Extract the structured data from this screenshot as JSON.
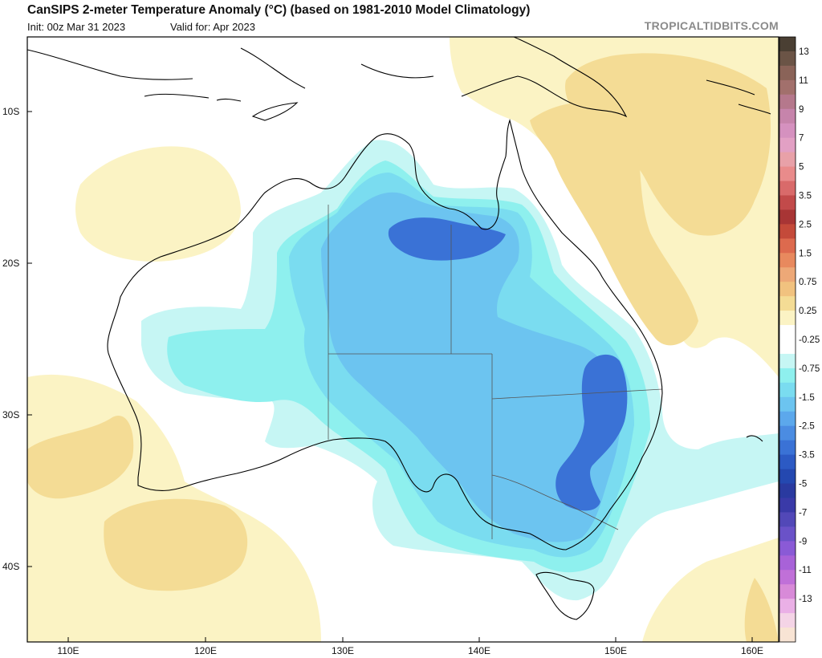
{
  "header": {
    "title": "CanSIPS 2-meter Temperature Anomaly (°C) (based on 1981-2010 Model Climatology)",
    "init": "Init: 00z Mar 31 2023",
    "valid": "Valid for: Apr 2023",
    "credit": "TROPICALTIDBITS.COM"
  },
  "axes": {
    "lat_labels": [
      "10S",
      "20S",
      "30S",
      "40S"
    ],
    "lon_labels": [
      "110E",
      "120E",
      "130E",
      "140E",
      "150E",
      "160E"
    ]
  },
  "colorbar": {
    "labels": [
      "13",
      "11",
      "9",
      "7",
      "5",
      "3.5",
      "2.5",
      "1.5",
      "0.75",
      "0.25",
      "-0.25",
      "-0.75",
      "-1.5",
      "-2.5",
      "-3.5",
      "-5",
      "-7",
      "-9",
      "-11",
      "-13"
    ],
    "colors": [
      "#4a3f33",
      "#6b5446",
      "#8a6358",
      "#a2706c",
      "#b5788c",
      "#c684ab",
      "#d591bf",
      "#e2a0c4",
      "#e8a1a8",
      "#e98b8b",
      "#d96a6a",
      "#c24a4a",
      "#a83535",
      "#c44a3a",
      "#dd6a4e",
      "#e8895e",
      "#eda877",
      "#f1c27f",
      "#f4dc95",
      "#fbf3c4",
      "#ffffff",
      "#ffffff",
      "#c6f6f4",
      "#8ef0ee",
      "#7adcf0",
      "#6cc4f0",
      "#5ca8ec",
      "#4b8ce2",
      "#3a72d6",
      "#2c5ac4",
      "#2448b0",
      "#2a3aa0",
      "#3a3aa8",
      "#5248b8",
      "#6a52c8",
      "#8a5ad6",
      "#a862d8",
      "#c070d8",
      "#d88ad8",
      "#eab0e6",
      "#f4d4e6",
      "#f8e4d4"
    ]
  },
  "legend_colors": {
    "warm_light": "#fbf3c4",
    "warm_medium": "#f4dc95",
    "cool_lightest": "#c6f6f4",
    "cool_light": "#8ef0ee",
    "cool_mid": "#7adcf0",
    "cool_blue": "#6cc4f0",
    "cool_deep": "#4b8ce2",
    "cool_deepest": "#3a72d6"
  }
}
